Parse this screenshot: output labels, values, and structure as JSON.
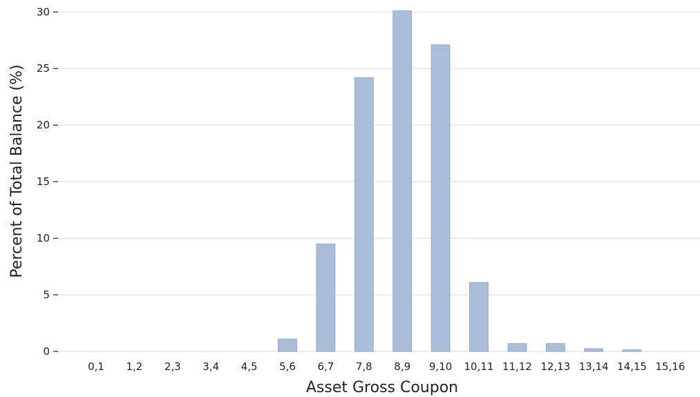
{
  "chart_data": {
    "type": "bar",
    "title": "",
    "xlabel": "Asset Gross Coupon",
    "ylabel": "Percent of Total Balance (%)",
    "categories": [
      "0,1",
      "1,2",
      "2,3",
      "3,4",
      "4,5",
      "5,6",
      "6,7",
      "7,8",
      "8,9",
      "9,10",
      "10,11",
      "11,12",
      "12,13",
      "13,14",
      "14,15",
      "15,16"
    ],
    "values": [
      0,
      0,
      0,
      0,
      0,
      1.1,
      9.5,
      24.2,
      30.1,
      27.1,
      6.1,
      0.7,
      0.7,
      0.25,
      0.15,
      0
    ],
    "ylim": [
      0,
      30.2
    ],
    "yticks": [
      0,
      5,
      10,
      15,
      20,
      25,
      30
    ],
    "grid": "horizontal",
    "colors": {
      "bar": "#a9bdd9",
      "bar_edge": "#8fa3bf",
      "grid": "#ebebeb"
    }
  }
}
